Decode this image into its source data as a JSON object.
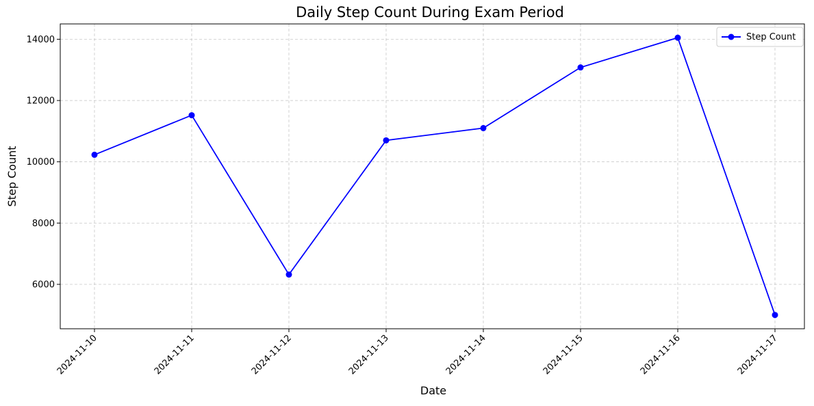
{
  "chart_data": {
    "type": "line",
    "title": "Daily Step Count During Exam Period",
    "xlabel": "Date",
    "ylabel": "Step Count",
    "categories": [
      "2024-11-10",
      "2024-11-11",
      "2024-11-12",
      "2024-11-13",
      "2024-11-14",
      "2024-11-15",
      "2024-11-16",
      "2024-11-17"
    ],
    "series": [
      {
        "name": "Step Count",
        "values": [
          10230,
          11520,
          6320,
          10700,
          11100,
          13080,
          14050,
          5000
        ],
        "color": "#0000ff",
        "marker": "circle"
      }
    ],
    "ylim": [
      4550,
      14500
    ],
    "yticks": [
      6000,
      8000,
      10000,
      12000,
      14000
    ],
    "grid": true,
    "legend": "top-right"
  }
}
